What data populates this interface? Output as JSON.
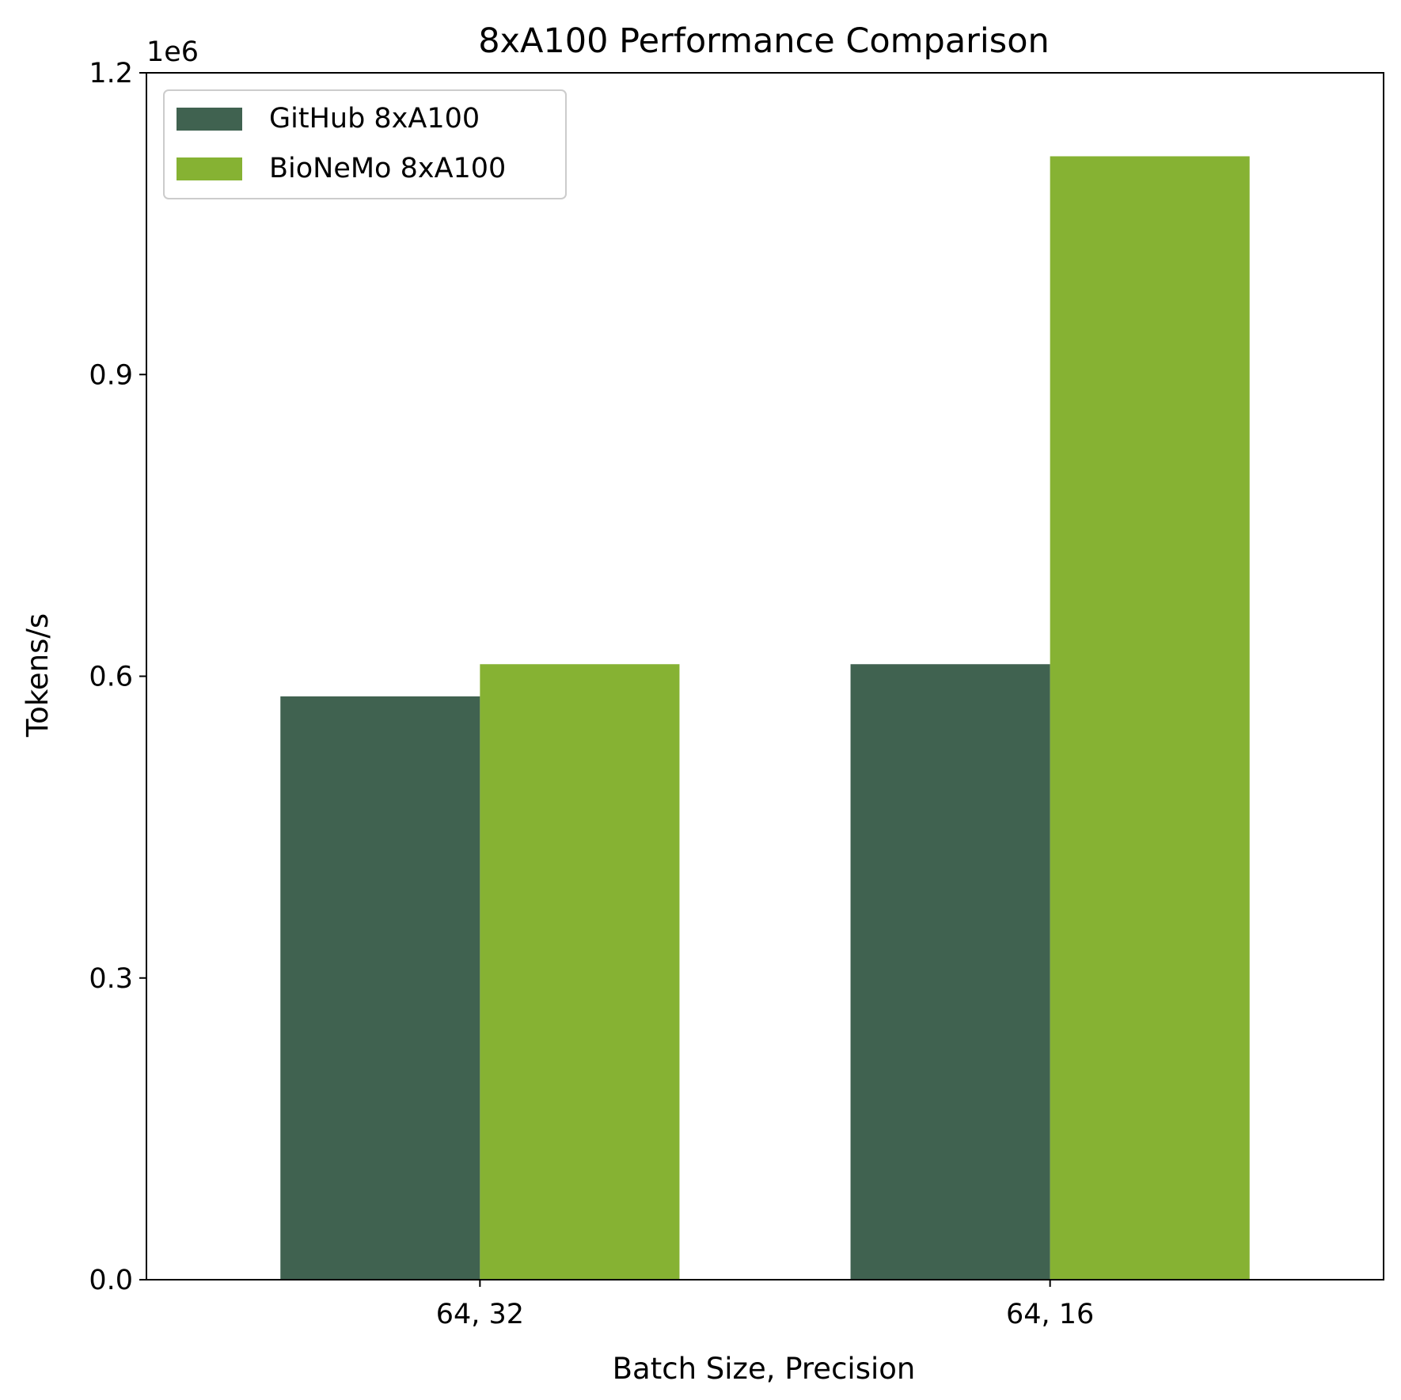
{
  "chart_data": {
    "type": "bar",
    "title": "8xA100 Performance Comparison",
    "xlabel": "Batch Size, Precision",
    "ylabel": "Tokens/s",
    "y_offset_label": "1e6",
    "categories": [
      "64, 32",
      "64, 16"
    ],
    "series": [
      {
        "name": "GitHub 8xA100",
        "color": "#406250",
        "values": [
          580000,
          612000
        ]
      },
      {
        "name": "BioNeMo 8xA100",
        "color": "#86b233",
        "values": [
          612000,
          1117000
        ]
      }
    ],
    "ylim": [
      0,
      1200000
    ],
    "y_ticks": [
      0,
      300000,
      600000,
      900000,
      1200000
    ],
    "y_tick_labels": [
      "0.0",
      "0.3",
      "0.6",
      "0.9",
      "1.2"
    ],
    "grid": false,
    "legend_position": "top-left"
  }
}
